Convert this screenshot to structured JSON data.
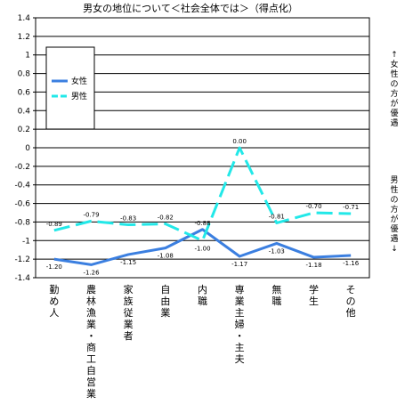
{
  "chart_data": {
    "type": "line",
    "title": "男女の地位について＜社会全体では＞（得点化）",
    "categories": [
      "勤め人",
      "農林漁業・商工自営業",
      "家族従業者",
      "自由業",
      "内職",
      "専業主婦・主夫",
      "無職",
      "学生",
      "その他"
    ],
    "series": [
      {
        "name": "女性",
        "color": "#3b7fe0",
        "dash": "solid",
        "values": [
          -1.2,
          -1.26,
          -1.15,
          -1.08,
          -0.88,
          -1.17,
          -1.03,
          -1.18,
          -1.16
        ],
        "labels": [
          "-1.20",
          "-1.26",
          "-1.15",
          "-1.08",
          "-0.88",
          "-1.17",
          "-1.03",
          "-1.18",
          "-1.16"
        ]
      },
      {
        "name": "男性",
        "color": "#22e8e8",
        "dash": "dashed",
        "values": [
          -0.89,
          -0.79,
          -0.83,
          -0.82,
          -1.0,
          0.0,
          -0.81,
          -0.7,
          -0.71
        ],
        "labels": [
          "-0.89",
          "-0.79",
          "-0.83",
          "-0.82",
          "-1.00",
          "0.00",
          "-0.81",
          "-0.70",
          "-0.71"
        ]
      }
    ],
    "ylim": [
      -1.4,
      1.4
    ],
    "yticks": [
      "1.4",
      "1.2",
      "1",
      "0.8",
      "0.6",
      "0.4",
      "0.2",
      "0",
      "-0.2",
      "-0.4",
      "-0.6",
      "-0.8",
      "-1",
      "-1.2",
      "-1.4"
    ],
    "ytick_values": [
      1.4,
      1.2,
      1.0,
      0.8,
      0.6,
      0.4,
      0.2,
      0.0,
      -0.2,
      -0.4,
      -0.6,
      -0.8,
      -1.0,
      -1.2,
      -1.4
    ],
    "grid": true,
    "legend_position": "top-left",
    "side_labels": {
      "upper": "↑女性の方が優遇",
      "lower": "男性の方が優遇↓"
    }
  }
}
